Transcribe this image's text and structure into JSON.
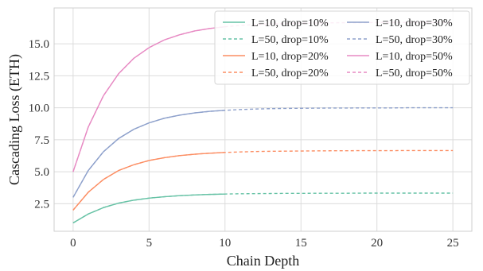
{
  "chart_data": {
    "type": "line",
    "xlabel": "Chain Depth",
    "ylabel": "Cascading Loss (ETH)",
    "xlim": [
      -1.25,
      26.25
    ],
    "ylim": [
      0.35,
      17.8
    ],
    "xticks": [
      0,
      5,
      10,
      15,
      20,
      25
    ],
    "yticks": [
      2.5,
      5.0,
      7.5,
      10.0,
      12.5,
      15.0
    ],
    "xtick_labels": [
      "0",
      "5",
      "10",
      "15",
      "20",
      "25"
    ],
    "ytick_labels": [
      "2.5",
      "5.0",
      "7.5",
      "10.0",
      "12.5",
      "15.0"
    ],
    "grid": true,
    "legend_position": "top-right",
    "legend_columns": 2,
    "series": [
      {
        "name": "L=10, drop=10%",
        "color": "#66c2a5",
        "dash": "solid",
        "x": [
          0,
          1,
          2,
          3,
          4,
          5,
          6,
          7,
          8,
          9,
          10
        ],
        "y": [
          1.0,
          1.7,
          2.2,
          2.55,
          2.78,
          2.94,
          3.05,
          3.13,
          3.19,
          3.23,
          3.26
        ]
      },
      {
        "name": "L=50, drop=10%",
        "color": "#66c2a5",
        "dash": "dashed",
        "x": [
          0,
          1,
          2,
          3,
          4,
          5,
          6,
          7,
          8,
          9,
          10,
          11,
          12,
          13,
          14,
          15,
          16,
          17,
          18,
          19,
          20,
          21,
          22,
          23,
          24,
          25
        ],
        "y": [
          1.0,
          1.7,
          2.2,
          2.55,
          2.78,
          2.94,
          3.05,
          3.13,
          3.19,
          3.23,
          3.26,
          3.28,
          3.29,
          3.3,
          3.31,
          3.31,
          3.32,
          3.32,
          3.32,
          3.33,
          3.33,
          3.33,
          3.33,
          3.33,
          3.33,
          3.33
        ]
      },
      {
        "name": "L=10, drop=20%",
        "color": "#fc8d62",
        "dash": "solid",
        "x": [
          0,
          1,
          2,
          3,
          4,
          5,
          6,
          7,
          8,
          9,
          10
        ],
        "y": [
          2.0,
          3.4,
          4.4,
          5.1,
          5.55,
          5.88,
          6.1,
          6.26,
          6.37,
          6.45,
          6.51
        ]
      },
      {
        "name": "L=50, drop=20%",
        "color": "#fc8d62",
        "dash": "dashed",
        "x": [
          0,
          1,
          2,
          3,
          4,
          5,
          6,
          7,
          8,
          9,
          10,
          11,
          12,
          13,
          14,
          15,
          16,
          17,
          18,
          19,
          20,
          21,
          22,
          23,
          24,
          25
        ],
        "y": [
          2.0,
          3.4,
          4.4,
          5.1,
          5.55,
          5.88,
          6.1,
          6.26,
          6.37,
          6.45,
          6.51,
          6.55,
          6.58,
          6.6,
          6.61,
          6.62,
          6.63,
          6.64,
          6.64,
          6.65,
          6.65,
          6.65,
          6.66,
          6.66,
          6.66,
          6.66
        ]
      },
      {
        "name": "L=10, drop=30%",
        "color": "#8da0cb",
        "dash": "solid",
        "x": [
          0,
          1,
          2,
          3,
          4,
          5,
          6,
          7,
          8,
          9,
          10
        ],
        "y": [
          3.0,
          5.1,
          6.57,
          7.6,
          8.32,
          8.82,
          9.18,
          9.42,
          9.6,
          9.72,
          9.8
        ]
      },
      {
        "name": "L=50, drop=30%",
        "color": "#8da0cb",
        "dash": "dashed",
        "x": [
          0,
          1,
          2,
          3,
          4,
          5,
          6,
          7,
          8,
          9,
          10,
          11,
          12,
          13,
          14,
          15,
          16,
          17,
          18,
          19,
          20,
          21,
          22,
          23,
          24,
          25
        ],
        "y": [
          3.0,
          5.1,
          6.57,
          7.6,
          8.32,
          8.82,
          9.18,
          9.42,
          9.6,
          9.72,
          9.8,
          9.86,
          9.9,
          9.93,
          9.95,
          9.96,
          9.97,
          9.98,
          9.98,
          9.99,
          9.99,
          9.99,
          10.0,
          10.0,
          10.0,
          10.0
        ]
      },
      {
        "name": "L=10, drop=50%",
        "color": "#e78ac3",
        "dash": "solid",
        "x": [
          0,
          1,
          2,
          3,
          4,
          5,
          6,
          7,
          8,
          9,
          10
        ],
        "y": [
          5.0,
          8.5,
          10.95,
          12.67,
          13.87,
          14.7,
          15.3,
          15.7,
          16.0,
          16.2,
          16.33
        ]
      },
      {
        "name": "L=50, drop=50%",
        "color": "#e78ac3",
        "dash": "dashed",
        "x": [
          0,
          1,
          2,
          3,
          4,
          5,
          6,
          7,
          8,
          9,
          10,
          11,
          12,
          13,
          14,
          15,
          16,
          17,
          18,
          19,
          20,
          21,
          22,
          23,
          24,
          25
        ],
        "y": [
          5.0,
          8.5,
          10.95,
          12.67,
          13.87,
          14.7,
          15.3,
          15.7,
          16.0,
          16.2,
          16.33,
          16.43,
          16.5,
          16.55,
          16.58,
          16.61,
          16.62,
          16.64,
          16.65,
          16.65,
          16.66,
          16.66,
          16.66,
          16.67,
          16.67,
          16.67
        ]
      }
    ]
  }
}
